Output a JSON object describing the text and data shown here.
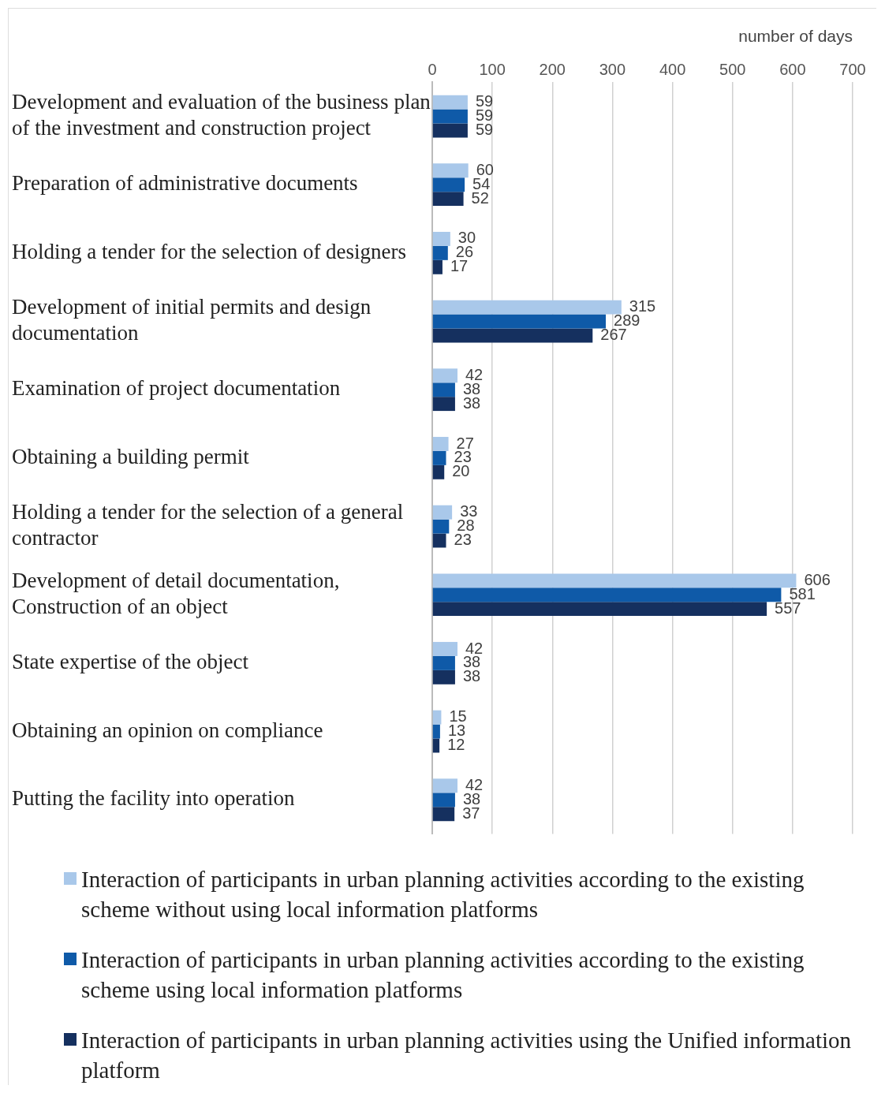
{
  "chart_data": {
    "type": "bar",
    "orientation": "horizontal",
    "xlabel": "number of days",
    "categories": [
      "Development and evaluation of the business plan of the investment and construction project",
      "Preparation of administrative documents",
      "Holding a tender for the selection of designers",
      "Development of initial permits and design documentation",
      "Examination of project documentation",
      "Obtaining a building permit",
      "Holding a tender for the selection of a general contractor",
      "Development of detail documentation, Construction of an object",
      "State expertise of the object",
      "Obtaining an opinion on compliance",
      "Putting the facility into operation"
    ],
    "series": [
      {
        "name": "Interaction of participants in urban planning activities according to the existing scheme without using local information platforms",
        "color": "#a9c8ea",
        "values": [
          59,
          60,
          30,
          315,
          42,
          27,
          33,
          606,
          42,
          15,
          42
        ]
      },
      {
        "name": "Interaction of participants in urban planning activities according to the existing scheme using local information platforms",
        "color": "#0f5aa8",
        "values": [
          59,
          54,
          26,
          289,
          38,
          23,
          28,
          581,
          38,
          13,
          38
        ]
      },
      {
        "name": "Interaction of participants in urban planning activities using the Unified information platform",
        "color": "#15305f",
        "values": [
          59,
          52,
          17,
          267,
          38,
          20,
          23,
          557,
          38,
          12,
          37
        ]
      }
    ],
    "xlim": [
      0,
      700
    ],
    "xticks": [
      0,
      100,
      200,
      300,
      400,
      500,
      600,
      700
    ],
    "grid": "x",
    "data_labels": true,
    "legend": "bottom"
  }
}
